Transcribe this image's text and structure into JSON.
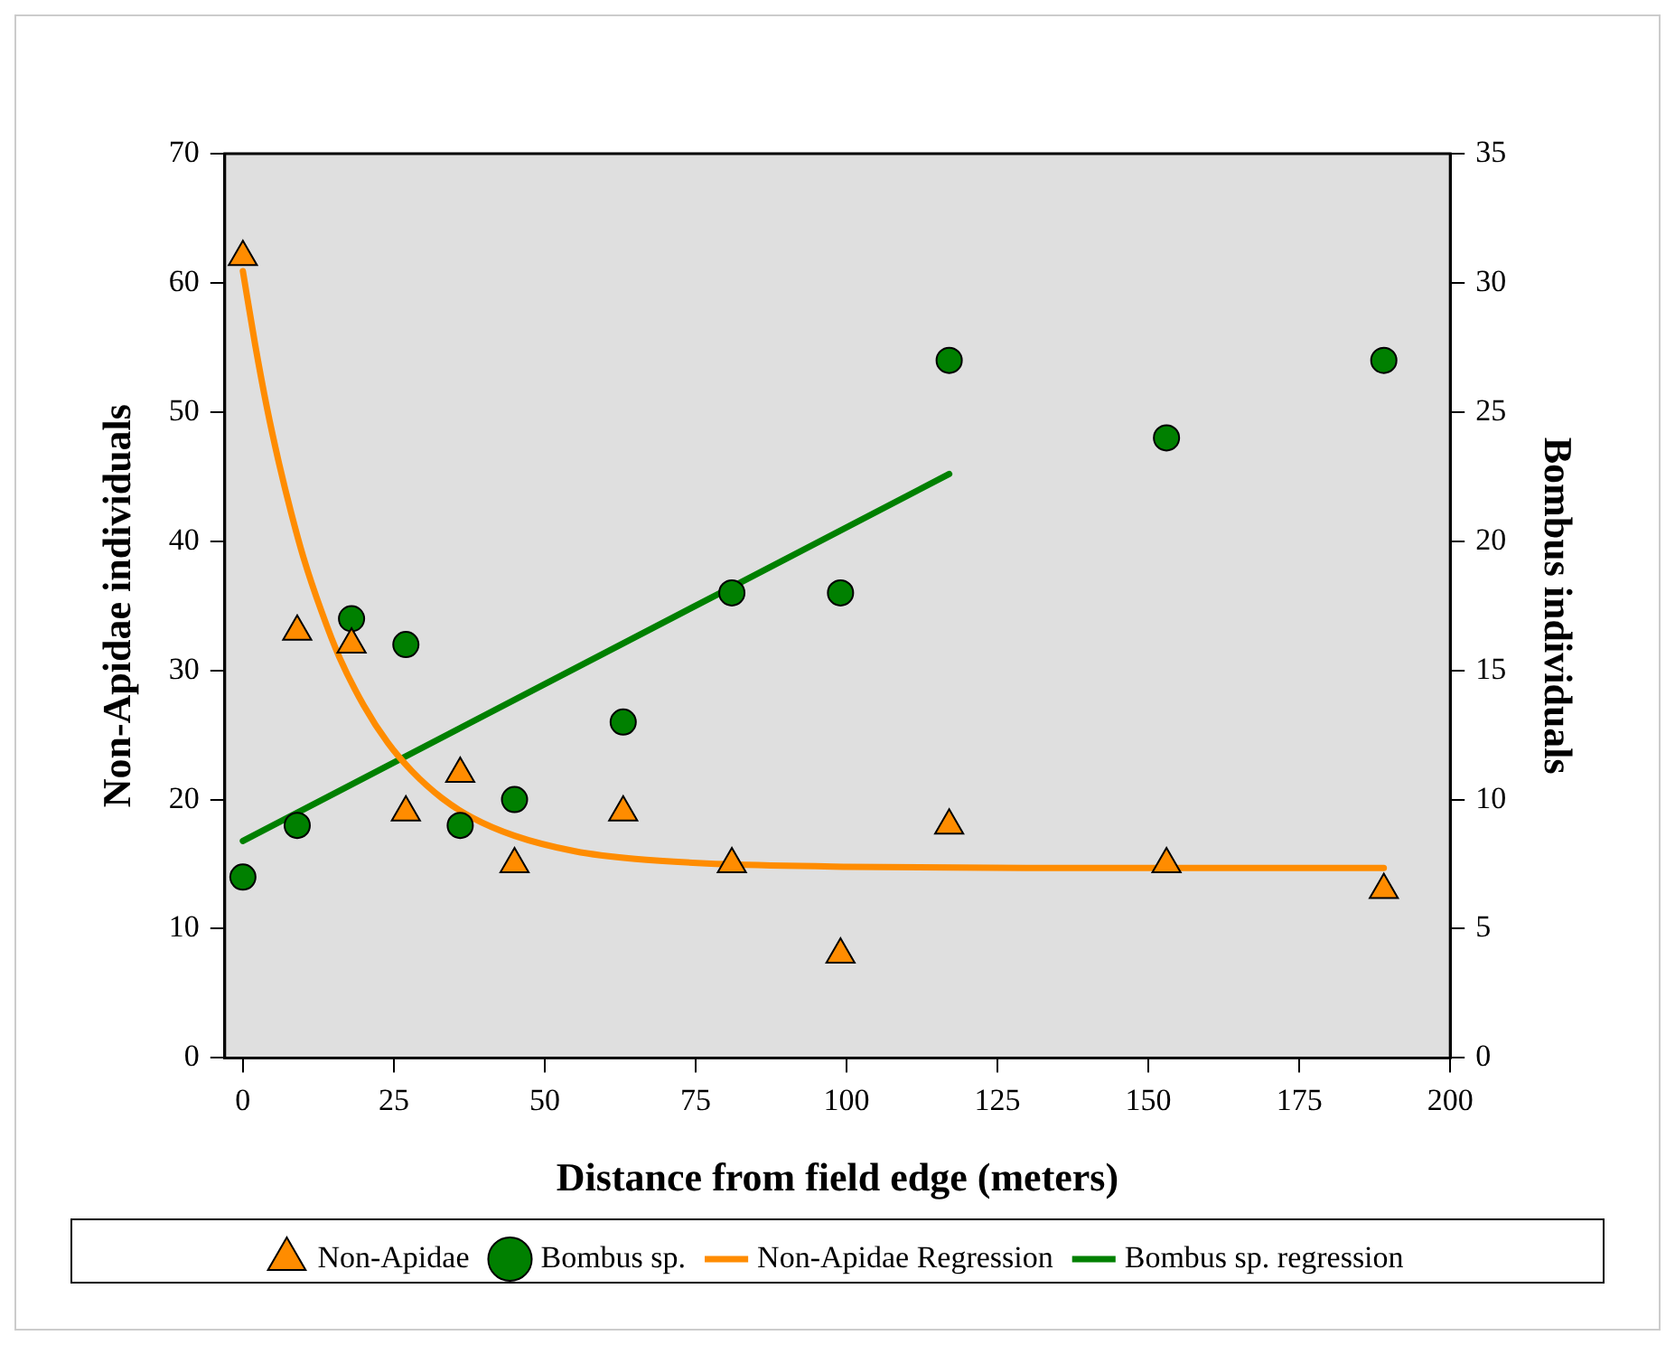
{
  "chart_data": {
    "type": "scatter",
    "xlabel": "Distance from field edge (meters)",
    "ylabel": "Non-Apidae individuals",
    "y2label": "Bombus individuals",
    "xlim": [
      -3,
      200
    ],
    "xticks": [
      0,
      25,
      50,
      75,
      100,
      125,
      150,
      175,
      200
    ],
    "ylim": [
      0,
      70
    ],
    "yticks": [
      0,
      10,
      20,
      30,
      40,
      50,
      60,
      70
    ],
    "y2lim": [
      0,
      35
    ],
    "y2ticks": [
      0,
      5,
      10,
      15,
      20,
      25,
      30,
      35
    ],
    "grid": false,
    "legend": "bottom",
    "series": [
      {
        "name": "Non-Apidae",
        "marker": "triangle",
        "color": "#ff8c00",
        "x": [
          0,
          9,
          18,
          27,
          36,
          45,
          63,
          81,
          99,
          117,
          153,
          189
        ],
        "values": [
          62,
          33,
          32,
          19,
          22,
          15,
          19,
          15,
          8,
          18,
          15,
          13
        ]
      },
      {
        "name": "Bombus sp.",
        "marker": "circle",
        "color": "#008000",
        "axis": "y2",
        "x": [
          0,
          9,
          18,
          27,
          36,
          45,
          63,
          81,
          99,
          117,
          153,
          189
        ],
        "values": [
          7,
          9,
          17,
          16,
          9,
          10,
          13,
          18,
          18,
          27,
          24,
          27
        ]
      },
      {
        "name": "Non-Apidae Regression",
        "type": "line",
        "marker": "none",
        "line_style": "solid",
        "color": "#ff8c00",
        "x": [
          0,
          2,
          4,
          6,
          8,
          10,
          13,
          16,
          20,
          24,
          28,
          33,
          38,
          45,
          55,
          65,
          80,
          100,
          130,
          160,
          189
        ],
        "values": [
          60.9,
          55.3,
          50.3,
          46.0,
          42.2,
          38.8,
          34.6,
          31.0,
          27.3,
          24.4,
          22.2,
          20.1,
          18.6,
          17.2,
          16.0,
          15.4,
          15.0,
          14.8,
          14.7,
          14.7,
          14.7
        ]
      },
      {
        "name": "Bombus sp. regression",
        "type": "line",
        "marker": "none",
        "line_style": "solid",
        "color": "#008000",
        "axis": "y2",
        "x": [
          0,
          117
        ],
        "values": [
          8.4,
          22.6
        ]
      }
    ]
  }
}
